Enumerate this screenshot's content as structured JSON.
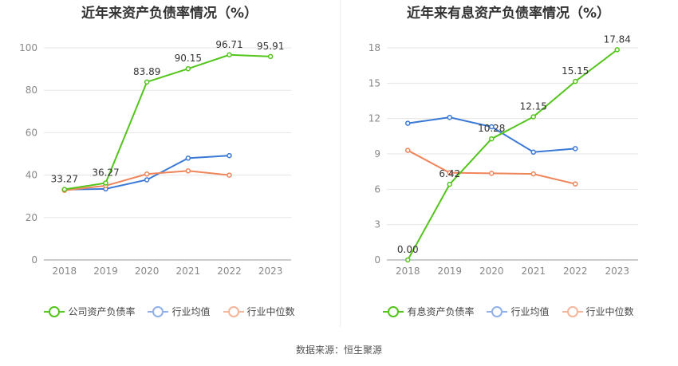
{
  "source": "数据来源：恒生聚源",
  "chart_data": [
    {
      "type": "line",
      "title": "近年来资产负债率情况（%）",
      "categories": [
        "2018",
        "2019",
        "2020",
        "2021",
        "2022",
        "2023"
      ],
      "ylim": [
        0,
        100
      ],
      "yticks": [
        0,
        20,
        40,
        60,
        80,
        100
      ],
      "series": [
        {
          "name": "公司资产负债率",
          "color": "#52c41a",
          "values": [
            33.27,
            36.27,
            83.89,
            90.15,
            96.71,
            95.91
          ],
          "labels": [
            "33.27",
            "36.27",
            "83.89",
            "90.15",
            "96.71",
            "95.91"
          ]
        },
        {
          "name": "行业均值",
          "color": "#3a78d6",
          "values": [
            33.2,
            33.5,
            37.8,
            48.0,
            49.2,
            null
          ]
        },
        {
          "name": "行业中位数",
          "color": "#f0845a",
          "values": [
            32.8,
            35.0,
            40.5,
            42.0,
            40.0,
            null
          ]
        }
      ],
      "legend": [
        {
          "name": "公司资产负债率",
          "color": "#52c41a"
        },
        {
          "name": "行业均值",
          "color": "#8fb0ea"
        },
        {
          "name": "行业中位数",
          "color": "#f5b59a"
        }
      ]
    },
    {
      "type": "line",
      "title": "近年来有息资产负债率情况（%）",
      "categories": [
        "2018",
        "2019",
        "2020",
        "2021",
        "2022",
        "2023"
      ],
      "ylim": [
        0,
        18
      ],
      "yticks": [
        0,
        3,
        6,
        9,
        12,
        15,
        18
      ],
      "series": [
        {
          "name": "有息资产负债率",
          "color": "#52c41a",
          "values": [
            0.0,
            6.42,
            10.28,
            12.15,
            15.15,
            17.84
          ],
          "labels": [
            "0.00",
            "6.42",
            "10.28",
            "12.15",
            "15.15",
            "17.84"
          ]
        },
        {
          "name": "行业均值",
          "color": "#3a78d6",
          "values": [
            11.6,
            12.1,
            11.3,
            9.15,
            9.45,
            null
          ]
        },
        {
          "name": "行业中位数",
          "color": "#f0845a",
          "values": [
            9.3,
            7.4,
            7.35,
            7.3,
            6.45,
            null
          ]
        }
      ],
      "legend": [
        {
          "name": "有息资产负债率",
          "color": "#52c41a"
        },
        {
          "name": "行业均值",
          "color": "#8fb0ea"
        },
        {
          "name": "行业中位数",
          "color": "#f5b59a"
        }
      ]
    }
  ]
}
